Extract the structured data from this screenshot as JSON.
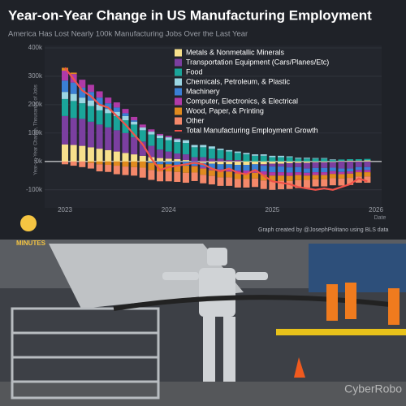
{
  "chart_data": {
    "type": "bar",
    "stacked": true,
    "title": "Year-on-Year Change in US Manufacturing Employment",
    "subtitle": "America Has Lost Nearly 100k Manufacturing Jobs Over the Last Year",
    "y_label": "Year-on-Year Change, Thousands of Jobs",
    "x_label": "Date",
    "credit": "Graph created by @JosephPolitano using BLS data",
    "categories": [
      "2023",
      null,
      null,
      null,
      null,
      null,
      null,
      null,
      null,
      null,
      null,
      null,
      "2024",
      null,
      null,
      null,
      null,
      null,
      null,
      null,
      null,
      null,
      null,
      null,
      "2025",
      null,
      null,
      null,
      null,
      null,
      null,
      null,
      null,
      null,
      null,
      null,
      "2026"
    ],
    "ylim": [
      -155000,
      400000
    ],
    "yticks": [
      {
        "value": -100000,
        "label": "-100k"
      },
      {
        "value": 0,
        "label": "0k"
      },
      {
        "value": 100000,
        "label": "100k"
      },
      {
        "value": 200000,
        "label": "200k"
      },
      {
        "value": 300000,
        "label": "300k"
      },
      {
        "value": 400000,
        "label": "400k"
      }
    ],
    "grid": true,
    "legend": "top-right",
    "series": [
      {
        "name": "Metals & Nonmetallic Minerals",
        "color": "#f7e08c",
        "values": [
          60000,
          58000,
          55000,
          50000,
          45000,
          40000,
          35000,
          30000,
          25000,
          20000,
          15000,
          12000,
          10000,
          8000,
          5000,
          0,
          -5000,
          -8000,
          -10000,
          -10000,
          -12000,
          -12000,
          -10000,
          -10000,
          -8000,
          -8000,
          -6000,
          -5000,
          -5000,
          -3000,
          -3000,
          -2000,
          2000,
          3000,
          3000,
          4000,
          null
        ]
      },
      {
        "name": "Transportation Equipment (Cars/Planes/Etc)",
        "color": "#7b3fa0",
        "values": [
          100000,
          95000,
          95000,
          90000,
          85000,
          80000,
          75000,
          70000,
          60000,
          50000,
          40000,
          30000,
          25000,
          20000,
          20000,
          15000,
          15000,
          10000,
          10000,
          5000,
          5000,
          0,
          0,
          -5000,
          -10000,
          -10000,
          -15000,
          -15000,
          -20000,
          -20000,
          -20000,
          -20000,
          -25000,
          -25000,
          -20000,
          -20000,
          null
        ]
      },
      {
        "name": "Food",
        "color": "#1aa59a",
        "values": [
          60000,
          60000,
          55000,
          55000,
          50000,
          50000,
          50000,
          45000,
          45000,
          40000,
          40000,
          40000,
          40000,
          40000,
          40000,
          35000,
          35000,
          35000,
          30000,
          30000,
          25000,
          25000,
          20000,
          20000,
          15000,
          15000,
          15000,
          10000,
          10000,
          10000,
          10000,
          5000,
          5000,
          5000,
          5000,
          5000,
          null
        ]
      },
      {
        "name": "Chemicals, Petroleum, & Plastic",
        "color": "#9bd6e3",
        "values": [
          25000,
          25000,
          20000,
          20000,
          20000,
          15000,
          15000,
          15000,
          10000,
          10000,
          10000,
          10000,
          10000,
          10000,
          10000,
          8000,
          8000,
          8000,
          5000,
          5000,
          5000,
          5000,
          5000,
          5000,
          5000,
          5000,
          3000,
          3000,
          3000,
          2000,
          2000,
          2000,
          0,
          0,
          0,
          0,
          null
        ]
      },
      {
        "name": "Machinery",
        "color": "#3a7fd5",
        "values": [
          40000,
          40000,
          35000,
          30000,
          25000,
          20000,
          15000,
          10000,
          5000,
          0,
          -5000,
          -10000,
          -10000,
          -12000,
          -15000,
          -15000,
          -15000,
          -18000,
          -18000,
          -18000,
          -20000,
          -20000,
          -20000,
          -20000,
          -20000,
          -20000,
          -18000,
          -18000,
          -15000,
          -15000,
          -15000,
          -12000,
          -12000,
          -10000,
          -10000,
          -10000,
          null
        ]
      },
      {
        "name": "Computer, Electronics, & Electrical",
        "color": "#b03aa8",
        "values": [
          35000,
          30000,
          28000,
          25000,
          22000,
          20000,
          18000,
          15000,
          12000,
          10000,
          8000,
          5000,
          5000,
          3000,
          0,
          -2000,
          -5000,
          -5000,
          -8000,
          -8000,
          -10000,
          -10000,
          -10000,
          -12000,
          -12000,
          -12000,
          -12000,
          -10000,
          -10000,
          -10000,
          -10000,
          -10000,
          -8000,
          -8000,
          -8000,
          -8000,
          null
        ]
      },
      {
        "name": "Wood, Paper, & Printing",
        "color": "#e08a1e",
        "values": [
          10000,
          5000,
          0,
          -5000,
          -10000,
          -12000,
          -15000,
          -18000,
          -20000,
          -22000,
          -25000,
          -25000,
          -25000,
          -25000,
          -25000,
          -22000,
          -22000,
          -20000,
          -20000,
          -20000,
          -20000,
          -20000,
          -20000,
          -20000,
          -20000,
          -18000,
          -18000,
          -18000,
          -15000,
          -15000,
          -15000,
          -15000,
          -15000,
          -15000,
          -15000,
          -15000,
          null
        ]
      },
      {
        "name": "Other",
        "color": "#f4886a",
        "values": [
          -10000,
          -15000,
          -20000,
          -20000,
          -25000,
          -25000,
          -30000,
          -30000,
          -30000,
          -35000,
          -35000,
          -35000,
          -35000,
          -35000,
          -35000,
          -30000,
          -30000,
          -30000,
          -30000,
          -30000,
          -30000,
          -30000,
          -30000,
          -30000,
          -30000,
          -30000,
          -28000,
          -28000,
          -28000,
          -25000,
          -25000,
          -25000,
          -25000,
          -25000,
          -22000,
          -22000,
          null
        ]
      },
      {
        "name": "Total Manufacturing Employment Growth",
        "color": "#f0524a",
        "type": "line",
        "values": [
          330000,
          290000,
          250000,
          230000,
          200000,
          190000,
          160000,
          130000,
          95000,
          60000,
          10000,
          -30000,
          -20000,
          -15000,
          -10000,
          -5000,
          -10000,
          -25000,
          -35000,
          -25000,
          -40000,
          -45000,
          -30000,
          -50000,
          -70000,
          -75000,
          -80000,
          -90000,
          -95000,
          -100000,
          -95000,
          -100000,
          -90000,
          -80000,
          -60000,
          -70000,
          null
        ]
      }
    ]
  },
  "overlay": {
    "logo_text": "MINUTES",
    "watermark": "CyberRobo"
  }
}
